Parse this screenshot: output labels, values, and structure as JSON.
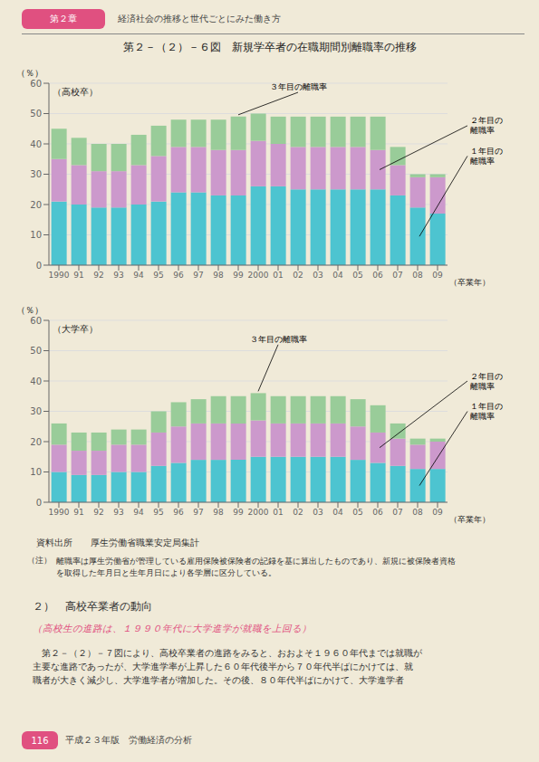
{
  "chart_data": [
    {
      "type": "bar",
      "title": "第２－（２）－６図　新規学卒者の在職期間別離職率の推移",
      "subtitle": "（高校卒）",
      "ylabel": "（％）",
      "xlabel": "（卒業年）",
      "categories": [
        "1990",
        "91",
        "92",
        "93",
        "94",
        "95",
        "96",
        "97",
        "98",
        "99",
        "2000",
        "01",
        "02",
        "03",
        "04",
        "05",
        "06",
        "07",
        "08",
        "09"
      ],
      "series": [
        {
          "name": "１年目の\n離職率",
          "color": "#4dc4d0",
          "values": [
            21,
            20,
            19,
            19,
            20,
            21,
            24,
            24,
            23,
            23,
            26,
            26,
            25,
            25,
            25,
            25,
            25,
            23,
            19,
            17
          ]
        },
        {
          "name": "２年目の\n離職率",
          "color": "#cc99cc",
          "values": [
            14,
            13,
            12,
            12,
            13,
            15,
            15,
            15,
            15,
            15,
            15,
            14,
            14,
            14,
            14,
            14,
            13,
            10,
            10,
            12
          ]
        },
        {
          "name": "３年目の離職率",
          "color": "#99cc99",
          "values": [
            10,
            9,
            9,
            9,
            10,
            10,
            9,
            9,
            10,
            11,
            9,
            9,
            10,
            10,
            10,
            10,
            11,
            6,
            1,
            1
          ]
        }
      ],
      "stacked": true,
      "grid": true,
      "ylim": [
        0,
        60
      ],
      "yticks": [
        0,
        10,
        20,
        30,
        40,
        50,
        60
      ],
      "annotations": [
        "第２章",
        "経済社会の推移と世代ごとにみた働き方"
      ]
    },
    {
      "type": "bar",
      "subtitle": "（大学卒）",
      "ylabel": "（％）",
      "xlabel": "（卒業年）",
      "categories": [
        "1990",
        "91",
        "92",
        "93",
        "94",
        "95",
        "96",
        "97",
        "98",
        "99",
        "2000",
        "01",
        "02",
        "03",
        "04",
        "05",
        "06",
        "07",
        "08",
        "09"
      ],
      "series": [
        {
          "name": "１年目の\n離職率",
          "color": "#4dc4d0",
          "values": [
            10,
            9,
            9,
            10,
            10,
            12,
            13,
            14,
            14,
            14,
            15,
            15,
            15,
            15,
            15,
            14,
            13,
            12,
            11,
            11
          ]
        },
        {
          "name": "２年目の\n離職率",
          "color": "#cc99cc",
          "values": [
            9,
            8,
            8,
            9,
            9,
            11,
            12,
            12,
            12,
            12,
            12,
            11,
            11,
            11,
            11,
            11,
            10,
            9,
            8,
            9
          ]
        },
        {
          "name": "３年目の離職率",
          "color": "#99cc99",
          "values": [
            7,
            6,
            6,
            5,
            5,
            7,
            8,
            8,
            9,
            9,
            9,
            9,
            9,
            9,
            9,
            9,
            9,
            5,
            2,
            1
          ]
        }
      ],
      "stacked": true,
      "grid": true,
      "ylim": [
        0,
        60
      ],
      "yticks": [
        0,
        10,
        20,
        30,
        40,
        50,
        60
      ],
      "annotations": [
        "資料出所",
        "厚生労働省職業安定局集計",
        "（注）",
        "離職率は厚生労働省が管理している雇用保険被保険者の記録を基に算出したものであり、新規に被保険者資格\nを取得した年月日と生年月日により各学層に区分している。",
        "２）　高校卒業者の動向",
        "（高校生の進路は、１９９０年代に大学進学が就職を上回る）",
        "　第２－（２）－７図により、高校卒業者の進路をみると、おおよそ１９６０年代までは就職が\n主要な進路であったが、大学進学率が上昇した６０年代後半から７０年代半ばにかけては、就\n職者が大きく減少し、大学進学者が増加した。その後、８０年代半ばにかけて、大学進学者",
        "116",
        "平成２３年版　労働経済の分析"
      ]
    }
  ]
}
